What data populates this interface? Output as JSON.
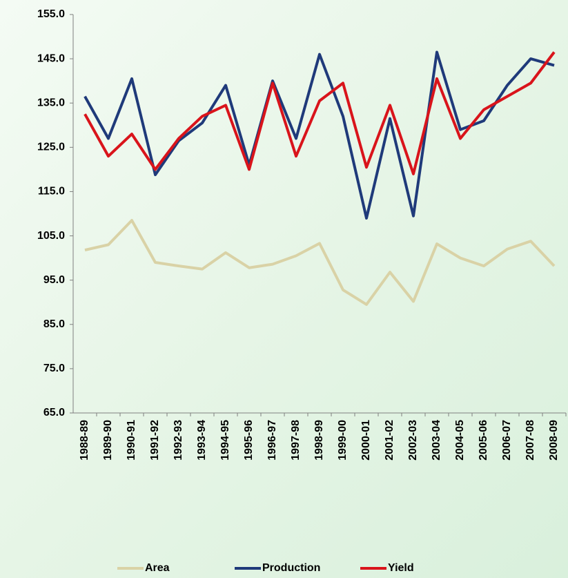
{
  "chart_data": {
    "type": "line",
    "categories": [
      "1988-89",
      "1989-90",
      "1990-91",
      "1991-92",
      "1992-93",
      "1993-94",
      "1994-95",
      "1995-96",
      "1996-97",
      "1997-98",
      "1998-99",
      "1999-00",
      "2000-01",
      "2001-02",
      "2002-03",
      "2003-04",
      "2004-05",
      "2005-06",
      "2006-07",
      "2007-08",
      "2008-09"
    ],
    "series": [
      {
        "name": "Area",
        "color": "#d9d2a6",
        "values": [
          101.8,
          103.0,
          108.5,
          99.0,
          98.2,
          97.5,
          101.2,
          97.8,
          98.6,
          100.5,
          103.3,
          92.8,
          89.5,
          96.8,
          90.2,
          103.2,
          100.0,
          98.2,
          102.0,
          103.8,
          98.2
        ]
      },
      {
        "name": "Production",
        "color": "#1f3a7a",
        "values": [
          136.5,
          127.0,
          140.5,
          118.8,
          126.5,
          130.5,
          139.0,
          121.0,
          140.0,
          127.0,
          146.0,
          132.0,
          109.0,
          131.5,
          109.5,
          146.5,
          129.0,
          131.0,
          139.0,
          145.0,
          143.5
        ]
      },
      {
        "name": "Yield",
        "color": "#d9141b",
        "values": [
          132.5,
          123.0,
          128.0,
          120.0,
          127.0,
          132.0,
          134.5,
          120.0,
          139.5,
          123.0,
          135.5,
          139.5,
          120.5,
          134.5,
          119.0,
          140.5,
          127.0,
          133.5,
          136.5,
          139.5,
          146.5
        ]
      }
    ],
    "ylim": [
      65,
      155
    ],
    "yticks": [
      {
        "value": 65,
        "label": "65.0"
      },
      {
        "value": 75,
        "label": "75.0"
      },
      {
        "value": 85,
        "label": "85.0"
      },
      {
        "value": 95,
        "label": "95.0"
      },
      {
        "value": 105,
        "label": "105.0"
      },
      {
        "value": 115,
        "label": "115.0"
      },
      {
        "value": 125,
        "label": "125.0"
      },
      {
        "value": 135,
        "label": "135.0"
      },
      {
        "value": 145,
        "label": "145.0"
      },
      {
        "value": 155,
        "label": "155.0"
      }
    ],
    "legend": "bottom"
  }
}
